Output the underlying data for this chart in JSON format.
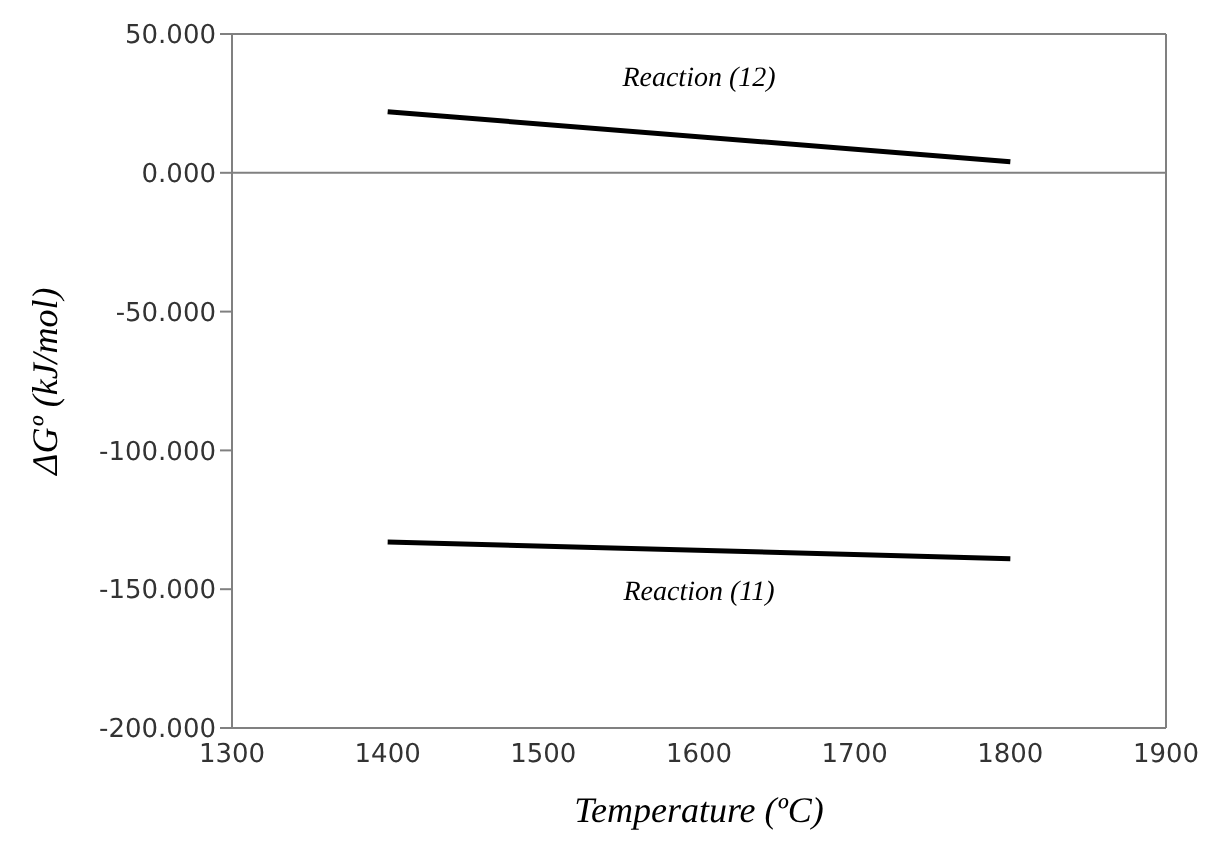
{
  "chart_data": {
    "type": "line",
    "xlabel": "Temperature (ºC)",
    "ylabel": "ΔGº (kJ/mol)",
    "x": [
      1400,
      1800
    ],
    "series": [
      {
        "name": "Reaction (12)",
        "color": "#000000",
        "values": [
          22,
          4
        ]
      },
      {
        "name": "Reaction (11)",
        "color": "#000000",
        "values": [
          -133,
          -139
        ]
      }
    ],
    "xlim": [
      1300,
      1900
    ],
    "xticks": [
      1300,
      1400,
      1500,
      1600,
      1700,
      1800,
      1900
    ],
    "ylim": [
      -200,
      50
    ],
    "yticks": [
      {
        "value": -200,
        "label": "-200.000"
      },
      {
        "value": -150,
        "label": "-150.000"
      },
      {
        "value": -100,
        "label": "-100.000"
      },
      {
        "value": -50,
        "label": "-50.000"
      },
      {
        "value": 0,
        "label": "0.000"
      },
      {
        "value": 50,
        "label": "50.000"
      }
    ],
    "ref_lines": [
      {
        "axis": "y",
        "value": 0,
        "color": "#808080"
      }
    ],
    "grid": false,
    "legend": false,
    "marker": "none",
    "line_style": "solid"
  }
}
